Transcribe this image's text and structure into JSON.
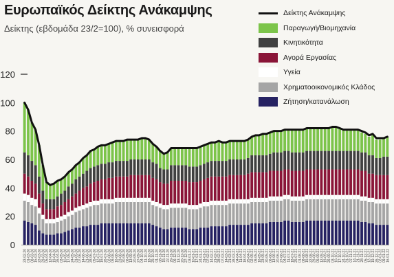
{
  "chart_data": {
    "type": "bar",
    "title": "Ευρωπαϊκός Δείκτης Ανάκαμψης",
    "subtitle": "Δείκτης (εβδομάδα 23/2=100), % συνεισφορά",
    "xlabel": "",
    "ylabel": "",
    "ylim": [
      0,
      120
    ],
    "yticks": [
      0,
      20,
      40,
      60,
      80,
      100,
      120
    ],
    "grid": false,
    "legend_position": "top-right",
    "x": [
      "23-02-20",
      "01-03-20",
      "08-03-20",
      "15-03-20",
      "22-03-20",
      "29-03-20",
      "05-04-20",
      "12-04-20",
      "19-04-20",
      "26-04-20",
      "03-05-20",
      "10-05-20",
      "17-05-20",
      "24-05-20",
      "31-05-20",
      "07-06-20",
      "14-06-20",
      "21-06-20",
      "28-06-20",
      "05-07-20",
      "12-07-20",
      "19-07-20",
      "26-07-20",
      "02-08-20",
      "09-08-20",
      "16-08-20",
      "23-08-20",
      "30-08-20",
      "06-09-20",
      "13-09-20",
      "20-09-20",
      "27-09-20",
      "04-10-20",
      "11-10-20",
      "18-10-20",
      "25-10-20",
      "01-11-20",
      "08-11-20",
      "15-11-20",
      "22-11-20",
      "29-11-20",
      "06-12-20",
      "13-12-20",
      "20-12-20",
      "27-12-20",
      "03-01-21",
      "10-01-21",
      "17-01-21",
      "24-01-21",
      "31-01-21",
      "07-02-21",
      "14-02-21",
      "21-02-21",
      "28-02-21",
      "07-03-21",
      "14-03-21",
      "21-03-21",
      "28-03-21",
      "04-04-21",
      "11-04-21",
      "18-04-21",
      "25-04-21",
      "02-05-21",
      "09-05-21",
      "16-05-21",
      "23-05-21",
      "30-05-21",
      "06-06-21",
      "13-06-21",
      "20-06-21",
      "27-06-21",
      "04-07-21",
      "11-07-21",
      "18-07-21",
      "25-07-21",
      "01-08-21",
      "08-08-21",
      "15-08-21",
      "22-08-21",
      "29-08-21",
      "05-09-21",
      "12-09-21",
      "19-09-21",
      "26-09-21",
      "03-10-21",
      "10-10-21",
      "17-10-21",
      "24-10-21",
      "31-10-21",
      "07-11-21",
      "14-11-21",
      "21-11-21",
      "28-11-21",
      "05-12-21",
      "12-12-21",
      "19-12-21",
      "26-12-21",
      "02-01-22",
      "09-01-22",
      "16-01-22"
    ],
    "series": [
      {
        "name": "Ζήτηση/κατανάλωση",
        "color": "#262262",
        "values": [
          17,
          16,
          15,
          14,
          10,
          8,
          7,
          7,
          7,
          8,
          8,
          9,
          10,
          11,
          12,
          12,
          13,
          13,
          14,
          14,
          14,
          15,
          15,
          15,
          15,
          15,
          15,
          15,
          15,
          15,
          15,
          15,
          15,
          15,
          15,
          14,
          13,
          12,
          11,
          11,
          12,
          12,
          12,
          12,
          12,
          11,
          11,
          11,
          12,
          12,
          12,
          13,
          13,
          13,
          13,
          13,
          14,
          14,
          14,
          14,
          14,
          14,
          15,
          15,
          15,
          15,
          15,
          16,
          16,
          16,
          16,
          17,
          17,
          16,
          16,
          16,
          16,
          17,
          17,
          17,
          17,
          17,
          17,
          17,
          17,
          17,
          17,
          17,
          17,
          17,
          17,
          17,
          16,
          16,
          15,
          15,
          14,
          14,
          14,
          14
        ]
      },
      {
        "name": "Χρηματοοικονομικός Κλάδος",
        "color": "#a5a5a5",
        "values": [
          14,
          14,
          13,
          13,
          12,
          10,
          8,
          8,
          8,
          8,
          9,
          9,
          10,
          10,
          11,
          12,
          12,
          13,
          13,
          14,
          14,
          14,
          14,
          14,
          14,
          15,
          15,
          15,
          15,
          15,
          15,
          15,
          15,
          15,
          15,
          14,
          14,
          14,
          14,
          14,
          14,
          14,
          14,
          14,
          14,
          14,
          14,
          14,
          14,
          15,
          15,
          15,
          15,
          15,
          15,
          15,
          15,
          15,
          15,
          15,
          15,
          15,
          15,
          15,
          15,
          15,
          15,
          15,
          15,
          15,
          15,
          15,
          15,
          15,
          15,
          15,
          15,
          15,
          15,
          15,
          15,
          15,
          15,
          15,
          15,
          15,
          15,
          15,
          15,
          15,
          15,
          15,
          15,
          15,
          15,
          15,
          15,
          15,
          15,
          15
        ]
      },
      {
        "name": "Υγεία",
        "color": "#ffffff",
        "values": [
          5,
          5,
          5,
          5,
          4,
          3,
          3,
          3,
          3,
          3,
          3,
          3,
          3,
          3,
          3,
          3,
          3,
          3,
          3,
          3,
          3,
          3,
          3,
          3,
          3,
          3,
          3,
          3,
          3,
          3,
          3,
          3,
          3,
          3,
          3,
          3,
          3,
          3,
          3,
          3,
          3,
          3,
          3,
          3,
          3,
          3,
          3,
          3,
          3,
          3,
          3,
          3,
          3,
          3,
          3,
          3,
          3,
          3,
          3,
          3,
          3,
          3,
          3,
          3,
          3,
          3,
          3,
          3,
          3,
          3,
          3,
          3,
          3,
          3,
          3,
          3,
          3,
          3,
          3,
          3,
          3,
          3,
          3,
          3,
          3,
          3,
          3,
          3,
          3,
          3,
          3,
          3,
          3,
          3,
          3,
          3,
          3,
          3,
          3,
          3
        ]
      },
      {
        "name": "Αγορά Εργασίας",
        "color": "#8a1538",
        "values": [
          14,
          13,
          12,
          11,
          10,
          8,
          7,
          7,
          7,
          8,
          8,
          9,
          9,
          10,
          10,
          11,
          12,
          12,
          13,
          13,
          14,
          14,
          14,
          15,
          15,
          15,
          15,
          15,
          15,
          16,
          16,
          16,
          16,
          16,
          16,
          16,
          16,
          15,
          15,
          15,
          16,
          16,
          16,
          16,
          16,
          16,
          16,
          16,
          16,
          16,
          17,
          17,
          17,
          17,
          17,
          17,
          17,
          17,
          17,
          17,
          17,
          18,
          18,
          18,
          18,
          18,
          18,
          18,
          18,
          18,
          18,
          18,
          18,
          18,
          18,
          18,
          18,
          18,
          18,
          18,
          18,
          18,
          18,
          18,
          18,
          18,
          18,
          18,
          18,
          18,
          18,
          18,
          18,
          18,
          17,
          17,
          17,
          17,
          17,
          17
        ]
      },
      {
        "name": "Κινητικότητα",
        "color": "#404040",
        "values": [
          15,
          15,
          14,
          13,
          12,
          9,
          7,
          7,
          7,
          7,
          8,
          8,
          9,
          9,
          10,
          10,
          10,
          11,
          11,
          11,
          11,
          11,
          11,
          11,
          11,
          11,
          11,
          11,
          11,
          11,
          11,
          11,
          11,
          11,
          11,
          11,
          11,
          10,
          10,
          10,
          11,
          11,
          11,
          11,
          11,
          11,
          11,
          11,
          11,
          11,
          11,
          11,
          11,
          11,
          11,
          11,
          11,
          11,
          11,
          11,
          11,
          11,
          12,
          12,
          12,
          12,
          12,
          12,
          13,
          13,
          13,
          13,
          13,
          13,
          13,
          13,
          13,
          13,
          13,
          13,
          13,
          13,
          13,
          13,
          13,
          13,
          13,
          13,
          13,
          13,
          13,
          13,
          13,
          13,
          13,
          13,
          12,
          12,
          13,
          13
        ]
      },
      {
        "name": "Παραγωγή/Βιομηχανία",
        "color": "#7cc44a",
        "values": [
          35,
          32,
          27,
          25,
          22,
          18,
          12,
          10,
          11,
          11,
          10,
          10,
          10,
          10,
          10,
          10,
          11,
          11,
          12,
          12,
          13,
          13,
          13,
          13,
          14,
          14,
          14,
          14,
          15,
          14,
          14,
          14,
          15,
          15,
          14,
          13,
          12,
          12,
          11,
          12,
          12,
          12,
          12,
          12,
          12,
          13,
          13,
          13,
          13,
          13,
          13,
          13,
          13,
          14,
          13,
          13,
          13,
          13,
          13,
          13,
          13,
          13,
          13,
          14,
          14,
          15,
          15,
          15,
          15,
          15,
          15,
          15,
          15,
          16,
          16,
          16,
          16,
          16,
          16,
          16,
          16,
          16,
          16,
          16,
          17,
          17,
          16,
          15,
          15,
          15,
          15,
          15,
          14,
          13,
          13,
          14,
          13,
          13,
          13,
          14
        ]
      }
    ],
    "index_line": {
      "name": "Δείκτης Ανάκαμψης",
      "color": "#111111",
      "values": [
        100,
        95,
        86,
        81,
        70,
        56,
        44,
        42,
        43,
        45,
        46,
        48,
        51,
        53,
        56,
        58,
        61,
        63,
        66,
        67,
        69,
        70,
        70,
        71,
        72,
        73,
        73,
        73,
        74,
        74,
        74,
        74,
        75,
        75,
        74,
        71,
        69,
        66,
        64,
        65,
        68,
        68,
        68,
        68,
        68,
        68,
        68,
        68,
        69,
        70,
        71,
        72,
        72,
        73,
        72,
        72,
        73,
        73,
        73,
        73,
        73,
        74,
        76,
        77,
        77,
        78,
        78,
        79,
        80,
        80,
        80,
        81,
        81,
        81,
        81,
        81,
        81,
        82,
        82,
        82,
        82,
        82,
        82,
        82,
        83,
        83,
        82,
        81,
        81,
        81,
        81,
        81,
        80,
        79,
        77,
        78,
        75,
        75,
        75,
        76
      ]
    }
  }
}
